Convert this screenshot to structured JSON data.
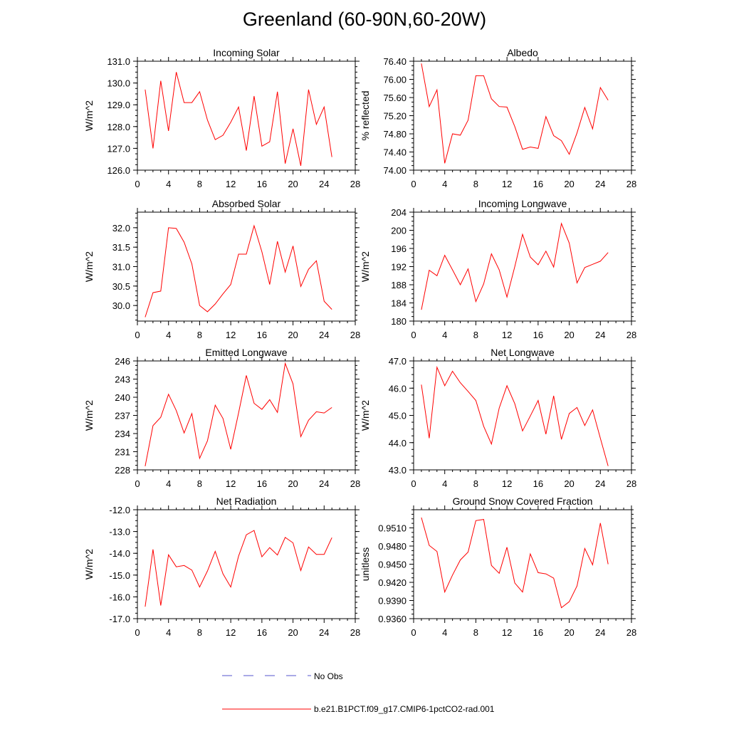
{
  "title": "Greenland (60-90N,60-20W)",
  "line_color": "#ff0000",
  "obs_color": "#5555cc",
  "legend": {
    "obs_label": "No Obs",
    "model_label": "b.e21.B1PCT.f09_g17.CMIP6-1pctCO2-rad.001"
  },
  "chart_data": [
    {
      "type": "line",
      "title": "Incoming Solar",
      "ylabel": "W/m^2",
      "xlim": [
        0,
        28
      ],
      "xticks": [
        "0",
        "4",
        "8",
        "12",
        "16",
        "20",
        "24",
        "28"
      ],
      "ylim": [
        126.0,
        131.0
      ],
      "yticks": [
        "126.0",
        "127.0",
        "128.0",
        "129.0",
        "130.0",
        "131.0"
      ],
      "x": [
        1,
        2,
        3,
        4,
        5,
        6,
        7,
        8,
        9,
        10,
        11,
        12,
        13,
        14,
        15,
        16,
        17,
        18,
        19,
        20,
        21,
        22,
        23,
        24,
        25
      ],
      "series": [
        {
          "name": "b.e21.B1PCT.f09_g17.CMIP6-1pctCO2-rad.001",
          "values": [
            129.7,
            127.0,
            130.1,
            127.8,
            130.5,
            129.1,
            129.1,
            129.6,
            128.3,
            127.4,
            127.6,
            128.2,
            128.9,
            126.9,
            129.4,
            127.1,
            127.3,
            129.6,
            126.3,
            127.9,
            126.2,
            129.7,
            128.1,
            128.9,
            126.6
          ]
        }
      ]
    },
    {
      "type": "line",
      "title": "Albedo",
      "ylabel": "% reflected",
      "xlim": [
        0,
        28
      ],
      "xticks": [
        "0",
        "4",
        "8",
        "12",
        "16",
        "20",
        "24",
        "28"
      ],
      "ylim": [
        74.0,
        76.4
      ],
      "yticks": [
        "74.00",
        "74.40",
        "74.80",
        "75.20",
        "75.60",
        "76.00",
        "76.40"
      ],
      "x": [
        1,
        2,
        3,
        4,
        5,
        6,
        7,
        8,
        9,
        10,
        11,
        12,
        13,
        14,
        15,
        16,
        17,
        18,
        19,
        20,
        21,
        22,
        23,
        24,
        25
      ],
      "series": [
        {
          "name": "b.e21.B1PCT.f09_g17.CMIP6-1pctCO2-rad.001",
          "values": [
            76.35,
            75.4,
            75.77,
            74.15,
            74.8,
            74.77,
            75.1,
            76.08,
            76.08,
            75.57,
            75.4,
            75.39,
            74.96,
            74.46,
            74.51,
            74.48,
            75.18,
            74.76,
            74.65,
            74.35,
            74.82,
            75.38,
            74.91,
            75.82,
            75.54
          ]
        }
      ]
    },
    {
      "type": "line",
      "title": "Absorbed Solar",
      "ylabel": "W/m^2",
      "xlim": [
        0,
        28
      ],
      "xticks": [
        "0",
        "4",
        "8",
        "12",
        "16",
        "20",
        "24",
        "28"
      ],
      "ylim": [
        29.6,
        32.4
      ],
      "yticks": [
        "30.0",
        "30.5",
        "31.0",
        "31.5",
        "32.0"
      ],
      "x": [
        1,
        2,
        3,
        4,
        5,
        6,
        7,
        8,
        9,
        10,
        11,
        12,
        13,
        14,
        15,
        16,
        17,
        18,
        19,
        20,
        21,
        22,
        23,
        24,
        25
      ],
      "series": [
        {
          "name": "b.e21.B1PCT.f09_g17.CMIP6-1pctCO2-rad.001",
          "values": [
            29.7,
            30.33,
            30.37,
            32.0,
            31.98,
            31.63,
            31.07,
            30.0,
            29.84,
            30.04,
            30.3,
            30.54,
            31.32,
            31.32,
            32.05,
            31.38,
            30.54,
            31.65,
            30.86,
            31.53,
            30.49,
            30.93,
            31.15,
            30.11,
            29.9
          ]
        }
      ]
    },
    {
      "type": "line",
      "title": "Incoming Longwave",
      "ylabel": "W/m^2",
      "xlim": [
        0,
        28
      ],
      "xticks": [
        "0",
        "4",
        "8",
        "12",
        "16",
        "20",
        "24",
        "28"
      ],
      "ylim": [
        180,
        204
      ],
      "yticks": [
        "180",
        "184",
        "188",
        "192",
        "196",
        "200",
        "204"
      ],
      "x": [
        1,
        2,
        3,
        4,
        5,
        6,
        7,
        8,
        9,
        10,
        11,
        12,
        13,
        14,
        15,
        16,
        17,
        18,
        19,
        20,
        21,
        22,
        23,
        24,
        25
      ],
      "series": [
        {
          "name": "b.e21.B1PCT.f09_g17.CMIP6-1pctCO2-rad.001",
          "values": [
            182.5,
            191.2,
            190.0,
            194.5,
            191.3,
            188.0,
            191.5,
            184.3,
            188.2,
            194.8,
            191.3,
            185.3,
            192.0,
            199.1,
            194.1,
            192.4,
            195.4,
            191.9,
            201.5,
            197.2,
            188.4,
            191.8,
            192.5,
            193.2,
            195.1
          ]
        }
      ]
    },
    {
      "type": "line",
      "title": "Emitted Longwave",
      "ylabel": "W/m^2",
      "xlim": [
        0,
        28
      ],
      "xticks": [
        "0",
        "4",
        "8",
        "12",
        "16",
        "20",
        "24",
        "28"
      ],
      "ylim": [
        228,
        246
      ],
      "yticks": [
        "228",
        "231",
        "234",
        "237",
        "240",
        "243",
        "246"
      ],
      "x": [
        1,
        2,
        3,
        4,
        5,
        6,
        7,
        8,
        9,
        10,
        11,
        12,
        13,
        14,
        15,
        16,
        17,
        18,
        19,
        20,
        21,
        22,
        23,
        24,
        25
      ],
      "series": [
        {
          "name": "b.e21.B1PCT.f09_g17.CMIP6-1pctCO2-rad.001",
          "values": [
            228.6,
            235.3,
            236.7,
            240.5,
            237.8,
            234.1,
            237.3,
            229.9,
            232.8,
            238.7,
            236.5,
            231.4,
            237.4,
            243.6,
            239.0,
            238.0,
            239.6,
            237.5,
            245.6,
            242.2,
            233.5,
            236.2,
            237.6,
            237.4,
            238.3
          ]
        }
      ]
    },
    {
      "type": "line",
      "title": "Net Longwave",
      "ylabel": "W/m^2",
      "xlim": [
        0,
        28
      ],
      "xticks": [
        "0",
        "4",
        "8",
        "12",
        "16",
        "20",
        "24",
        "28"
      ],
      "ylim": [
        43.0,
        47.0
      ],
      "yticks": [
        "43.0",
        "44.0",
        "45.0",
        "46.0",
        "47.0"
      ],
      "x": [
        1,
        2,
        3,
        4,
        5,
        6,
        7,
        8,
        9,
        10,
        11,
        12,
        13,
        14,
        15,
        16,
        17,
        18,
        19,
        20,
        21,
        22,
        23,
        24,
        25
      ],
      "series": [
        {
          "name": "b.e21.B1PCT.f09_g17.CMIP6-1pctCO2-rad.001",
          "values": [
            46.13,
            44.16,
            46.77,
            46.09,
            46.62,
            46.2,
            45.88,
            45.55,
            44.6,
            43.95,
            45.27,
            46.09,
            45.43,
            44.43,
            44.98,
            45.55,
            44.31,
            45.72,
            44.12,
            45.07,
            45.29,
            44.63,
            45.2,
            44.16,
            43.14
          ]
        }
      ]
    },
    {
      "type": "line",
      "title": "Net Radiation",
      "ylabel": "W/m^2",
      "xlim": [
        0,
        28
      ],
      "xticks": [
        "0",
        "4",
        "8",
        "12",
        "16",
        "20",
        "24",
        "28"
      ],
      "ylim": [
        -17.0,
        -12.0
      ],
      "yticks": [
        "-17.0",
        "-16.0",
        "-15.0",
        "-14.0",
        "-13.0",
        "-12.0"
      ],
      "x": [
        1,
        2,
        3,
        4,
        5,
        6,
        7,
        8,
        9,
        10,
        11,
        12,
        13,
        14,
        15,
        16,
        17,
        18,
        19,
        20,
        21,
        22,
        23,
        24,
        25
      ],
      "series": [
        {
          "name": "b.e21.B1PCT.f09_g17.CMIP6-1pctCO2-rad.001",
          "values": [
            -16.45,
            -13.82,
            -16.4,
            -14.07,
            -14.62,
            -14.56,
            -14.77,
            -15.55,
            -14.81,
            -13.91,
            -14.94,
            -15.55,
            -14.13,
            -13.15,
            -12.95,
            -14.16,
            -13.74,
            -14.08,
            -13.27,
            -13.52,
            -14.79,
            -13.71,
            -14.05,
            -14.05,
            -13.28
          ]
        }
      ]
    },
    {
      "type": "line",
      "title": "Ground Snow Covered Fraction",
      "ylabel": "unitless",
      "xlim": [
        0,
        28
      ],
      "xticks": [
        "0",
        "4",
        "8",
        "12",
        "16",
        "20",
        "24",
        "28"
      ],
      "ylim": [
        0.936,
        0.954
      ],
      "yticks": [
        "0.9360",
        "0.9390",
        "0.9420",
        "0.9450",
        "0.9480",
        "0.9510"
      ],
      "x": [
        1,
        2,
        3,
        4,
        5,
        6,
        7,
        8,
        9,
        10,
        11,
        12,
        13,
        14,
        15,
        16,
        17,
        18,
        19,
        20,
        21,
        22,
        23,
        24,
        25
      ],
      "series": [
        {
          "name": "b.e21.B1PCT.f09_g17.CMIP6-1pctCO2-rad.001",
          "values": [
            0.9527,
            0.9481,
            0.9471,
            0.9404,
            0.9432,
            0.9457,
            0.947,
            0.9522,
            0.9524,
            0.9448,
            0.9435,
            0.9478,
            0.9419,
            0.9404,
            0.9467,
            0.9436,
            0.9434,
            0.9427,
            0.9378,
            0.9388,
            0.9414,
            0.9476,
            0.9449,
            0.9518,
            0.945
          ]
        }
      ]
    }
  ]
}
